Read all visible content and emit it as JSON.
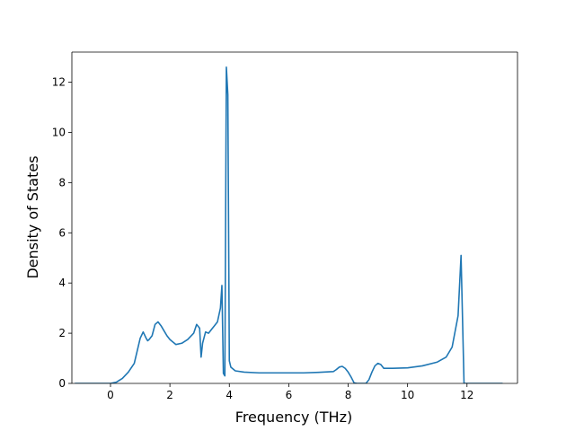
{
  "chart_data": {
    "type": "line",
    "title": "",
    "xlabel": "Frequency (THz)",
    "ylabel": "Density of States",
    "xlim": [
      -1.3,
      13.7
    ],
    "ylim": [
      0,
      13.2
    ],
    "xticks": [
      0,
      2,
      4,
      6,
      8,
      10,
      12
    ],
    "yticks": [
      0,
      2,
      4,
      6,
      8,
      10,
      12
    ],
    "grid": false,
    "legend": "none",
    "series": [
      {
        "color": "#1f77b4",
        "x": [
          -1.2,
          -0.5,
          0.0,
          0.2,
          0.4,
          0.6,
          0.8,
          0.9,
          1.0,
          1.1,
          1.2,
          1.25,
          1.3,
          1.4,
          1.5,
          1.6,
          1.7,
          1.8,
          1.9,
          2.0,
          2.2,
          2.4,
          2.6,
          2.8,
          2.9,
          3.0,
          3.05,
          3.1,
          3.2,
          3.3,
          3.4,
          3.5,
          3.6,
          3.7,
          3.75,
          3.8,
          3.85,
          3.9,
          3.95,
          4.0,
          4.05,
          4.1,
          4.15,
          4.2,
          4.5,
          5.0,
          5.5,
          6.0,
          6.5,
          7.0,
          7.5,
          7.6,
          7.7,
          7.8,
          7.9,
          8.0,
          8.1,
          8.2,
          8.3,
          8.4,
          8.6,
          8.7,
          8.8,
          8.9,
          9.0,
          9.1,
          9.2,
          9.3,
          9.4,
          9.5,
          10.0,
          10.5,
          11.0,
          11.3,
          11.5,
          11.7,
          11.8,
          11.9,
          11.95,
          12.0,
          12.05,
          12.1,
          12.5,
          13.2
        ],
        "y": [
          0.0,
          0.0,
          0.0,
          0.05,
          0.2,
          0.45,
          0.8,
          1.3,
          1.8,
          2.05,
          1.8,
          1.7,
          1.75,
          1.9,
          2.35,
          2.45,
          2.3,
          2.1,
          1.9,
          1.75,
          1.55,
          1.6,
          1.75,
          2.0,
          2.35,
          2.2,
          1.05,
          1.6,
          2.05,
          2.0,
          2.15,
          2.3,
          2.45,
          3.0,
          3.9,
          0.4,
          0.3,
          12.6,
          11.5,
          0.9,
          0.65,
          0.6,
          0.55,
          0.5,
          0.45,
          0.42,
          0.42,
          0.42,
          0.42,
          0.44,
          0.47,
          0.55,
          0.65,
          0.68,
          0.6,
          0.45,
          0.25,
          0.02,
          0.0,
          0.0,
          0.0,
          0.15,
          0.45,
          0.7,
          0.8,
          0.75,
          0.6,
          0.6,
          0.6,
          0.6,
          0.62,
          0.7,
          0.85,
          1.05,
          1.45,
          2.7,
          5.1,
          0.0,
          0.0,
          0.0,
          0.0,
          0.0,
          0.0,
          0.0
        ]
      }
    ]
  }
}
